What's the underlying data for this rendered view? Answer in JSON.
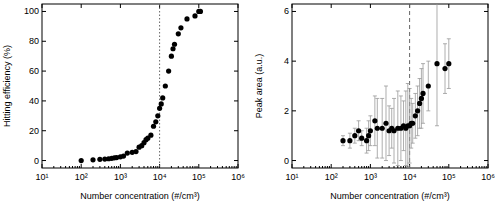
{
  "chart_data": [
    {
      "type": "scatter",
      "x_label": "Number concentration (#/cm³)",
      "y_label": "Hitting efficiency (%)",
      "x": [
        100,
        200,
        300,
        400,
        500,
        600,
        700,
        800,
        1000,
        1200,
        1500,
        2000,
        2500,
        3000,
        3500,
        4000,
        4500,
        5000,
        6000,
        7000,
        8000,
        9000,
        10000,
        11000,
        12000,
        14000,
        17000,
        20000,
        22000,
        24000,
        30000,
        35000,
        50000,
        80000,
        100000,
        110000
      ],
      "values": [
        0,
        0.5,
        0.8,
        1,
        1.2,
        1.5,
        1.8,
        2,
        2.5,
        3,
        5,
        5.5,
        6,
        9,
        10,
        12,
        14,
        15,
        17,
        23,
        26,
        30,
        35,
        38,
        42,
        50,
        60,
        70,
        75,
        78,
        85,
        89,
        95,
        97,
        100,
        100
      ],
      "color": "#000000",
      "marker": "circle",
      "log": "x",
      "xlim": [
        10,
        1000000
      ],
      "xticks": [
        {
          "value": 10,
          "label": "10¹"
        },
        {
          "value": 100,
          "label": "10²"
        },
        {
          "value": 1000,
          "label": "10³"
        },
        {
          "value": 10000,
          "label": "10⁴"
        },
        {
          "value": 100000,
          "label": "10⁵"
        },
        {
          "value": 1000000,
          "label": "10⁶"
        }
      ],
      "ylim": [
        -5,
        105
      ],
      "yticks": [
        0,
        20,
        40,
        60,
        80,
        100
      ],
      "vline": 10000,
      "line_style": "dotted"
    },
    {
      "type": "scatter",
      "x_label": "Number concentration (#/cm³)",
      "y_label": "Peak area (a.u.)",
      "x": [
        200,
        300,
        400,
        500,
        600,
        800,
        900,
        1000,
        1300,
        1500,
        2000,
        2500,
        3000,
        3500,
        4000,
        5000,
        6000,
        7000,
        8000,
        9000,
        10000,
        11000,
        12000,
        14000,
        16000,
        18000,
        20000,
        22000,
        30000,
        50000,
        80000,
        100000
      ],
      "values": [
        0.8,
        0.8,
        1.0,
        1.2,
        0.9,
        0.8,
        1.0,
        1.2,
        1.6,
        1.3,
        1.3,
        1.5,
        1.2,
        1.3,
        1.2,
        1.3,
        1.3,
        1.4,
        1.3,
        1.4,
        1.4,
        1.5,
        1.5,
        1.8,
        2.0,
        2.3,
        2.5,
        2.7,
        3.0,
        3.9,
        3.7,
        3.9
      ],
      "errors": [
        0.2,
        0.3,
        0.3,
        0.4,
        0.3,
        0.5,
        0.6,
        0.6,
        1.0,
        1.2,
        1.2,
        1.5,
        1.0,
        0.8,
        1.3,
        1.5,
        1.3,
        1.0,
        1.5,
        1.7,
        1.5,
        1.0,
        0.8,
        0.9,
        1.0,
        1.0,
        1.2,
        1.2,
        1.0,
        2.5,
        1.0,
        1.0
      ],
      "color": "#000000",
      "marker": "circle",
      "log": "x",
      "xlim": [
        10,
        1000000
      ],
      "xticks": [
        {
          "value": 10,
          "label": "10¹"
        },
        {
          "value": 100,
          "label": "10²"
        },
        {
          "value": 1000,
          "label": "10³"
        },
        {
          "value": 10000,
          "label": "10⁴"
        },
        {
          "value": 100000,
          "label": "10⁵"
        },
        {
          "value": 1000000,
          "label": "10⁶"
        }
      ],
      "ylim": [
        -0.3,
        6.3
      ],
      "yticks": [
        0,
        2,
        4,
        6
      ],
      "vline": 10000,
      "line_style": "dashed"
    }
  ]
}
